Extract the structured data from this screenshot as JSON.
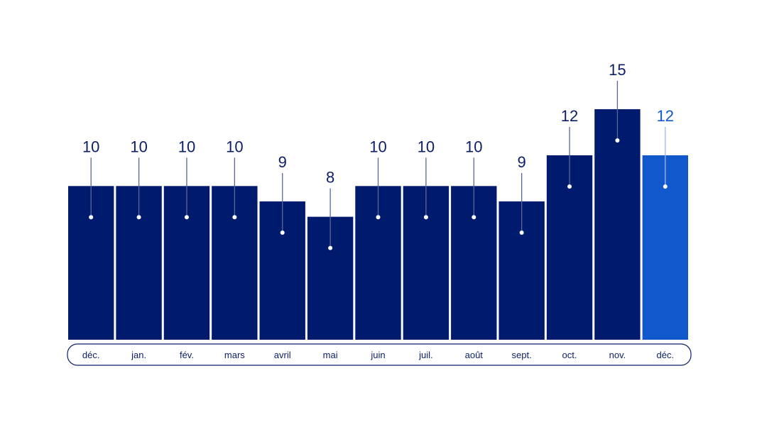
{
  "chart_data": {
    "type": "bar",
    "categories": [
      "déc.",
      "jan.",
      "fév.",
      "mars",
      "avril",
      "mai",
      "juin",
      "juil.",
      "août",
      "sept.",
      "oct.",
      "nov.",
      "déc."
    ],
    "values": [
      10,
      10,
      10,
      10,
      9,
      8,
      10,
      10,
      10,
      9,
      12,
      15,
      12
    ],
    "ylim": [
      0,
      20
    ],
    "grid": false,
    "legend": "none",
    "highlight_index": 12
  },
  "colors": {
    "bar": "#001A6E",
    "bar_highlight": "#1158CC",
    "label": "#0B1E66",
    "label_highlight": "#1158CC",
    "leader": "#5A6794",
    "axis_frame": "#0B1E66",
    "background": "#FFFFFF"
  }
}
